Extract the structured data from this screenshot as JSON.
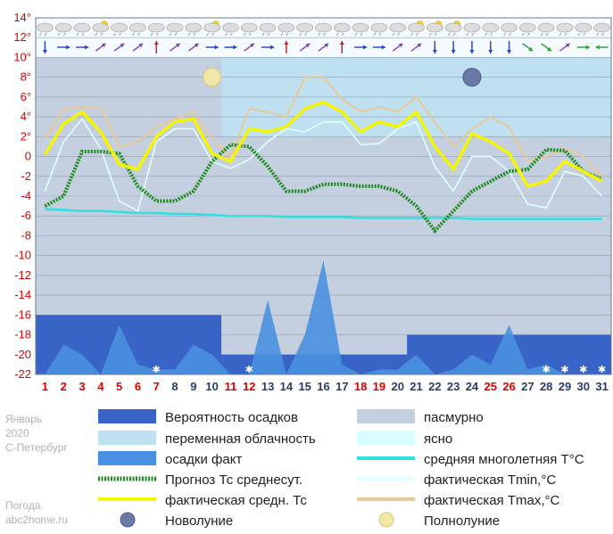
{
  "chart_data": {
    "type": "line",
    "month": "Январь",
    "year": "2020",
    "city": "С-Петербург",
    "site_line1": "Погода",
    "site_line2": "abc2home.ru",
    "ylim": [
      -22,
      14
    ],
    "yticks": [
      "14°",
      "12°",
      "10°",
      "8°",
      "6°",
      "4°",
      "2°",
      "0",
      "-2",
      "-4",
      "-6",
      "-8",
      "-10",
      "-12",
      "-14",
      "-16",
      "-18",
      "-20",
      "-22"
    ],
    "x": [
      1,
      2,
      3,
      4,
      5,
      6,
      7,
      8,
      9,
      10,
      11,
      12,
      13,
      14,
      15,
      16,
      17,
      18,
      19,
      20,
      21,
      22,
      23,
      24,
      25,
      26,
      27,
      28,
      29,
      30,
      31
    ],
    "x_labels": [
      "1",
      "2",
      "3",
      "4",
      "5",
      "6",
      "7",
      "8",
      "9",
      "10",
      "11",
      "12",
      "13",
      "14",
      "15",
      "16",
      "17",
      "18",
      "19",
      "20",
      "21",
      "22",
      "23",
      "24",
      "25",
      "26",
      "27",
      "28",
      "29",
      "30",
      "31"
    ],
    "weekend_days": [
      1,
      2,
      3,
      4,
      5,
      6,
      7,
      11,
      12,
      18,
      19,
      25,
      26
    ],
    "colors": {
      "overcast": "#c4d0e0",
      "variable": "#bfe0f0",
      "clear": "#d8ffff",
      "precip_prob": "#3864c8",
      "precip_fact": "#4a90e0",
      "forecast_avg": "#1a8a1a",
      "actual_avg": "#f5f500",
      "tmin": "#e0ffff",
      "tmax": "#e8c898",
      "climate": "#30e0e0",
      "weekend": "#e00000",
      "weekday": "#2a3a6a"
    },
    "series": [
      {
        "name": "Прогноз Тс среднесут.",
        "values": [
          -5,
          -4,
          0.5,
          0.5,
          0.3,
          -3,
          -4.5,
          -4.5,
          -3.5,
          -0.5,
          1.2,
          1.0,
          -1,
          -3.5,
          -3.5,
          -2.8,
          -2.8,
          -3,
          -3,
          -3.5,
          -5,
          -7.5,
          -5.5,
          -3.5,
          -2.5,
          -1.5,
          -1.3,
          0.7,
          0.6,
          -1.5,
          -2.3
        ]
      },
      {
        "name": "фактическая средн. Тс",
        "values": [
          0.2,
          3.3,
          4.5,
          2.5,
          -0.8,
          -1.3,
          2.0,
          3.5,
          3.8,
          0.3,
          -0.5,
          2.8,
          2.5,
          3.0,
          4.8,
          5.5,
          4.5,
          2.5,
          3.5,
          3.0,
          4.5,
          1.0,
          -1.3,
          2.3,
          1.5,
          0.3,
          -3.0,
          -2.5,
          -0.5,
          -1.5,
          -2.5
        ]
      },
      {
        "name": "фактическая Tmin,°C",
        "values": [
          -3.5,
          1.5,
          3.8,
          0.8,
          -4.5,
          -5.5,
          1.5,
          2.8,
          2.8,
          -0.5,
          -1.2,
          -0.3,
          1.5,
          2.8,
          2.5,
          3.5,
          3.5,
          1.2,
          1.3,
          2.8,
          3.5,
          -1,
          -3.5,
          0,
          0,
          -1.5,
          -4.8,
          -5.2,
          -1.5,
          -2,
          -4
        ]
      },
      {
        "name": "фактическая Tmax,°C",
        "values": [
          1.8,
          4.8,
          5,
          5,
          1,
          1.5,
          3,
          3.8,
          4.5,
          1.8,
          0,
          4.8,
          4.5,
          4,
          8,
          8,
          5.8,
          4.5,
          5,
          4.5,
          6,
          3.5,
          1,
          2.8,
          4,
          3,
          -0.5,
          0,
          0.8,
          0,
          -2
        ]
      },
      {
        "name": "средняя многолетняя T°C",
        "values": [
          -5.3,
          -5.4,
          -5.5,
          -5.5,
          -5.6,
          -5.7,
          -5.7,
          -5.8,
          -5.8,
          -5.9,
          -6,
          -6,
          -6,
          -6.1,
          -6.1,
          -6.1,
          -6.1,
          -6.2,
          -6.2,
          -6.2,
          -6.2,
          -6.2,
          -6.2,
          -6.3,
          -6.3,
          -6.3,
          -6.3,
          -6.3,
          -6.3,
          -6.3,
          -6.3
        ]
      },
      {
        "name": "осадки факт",
        "values": [
          0,
          3,
          2,
          0,
          5,
          1,
          0.5,
          0.5,
          3,
          2,
          0,
          0,
          7.5,
          0,
          4,
          11.5,
          1,
          0,
          0.5,
          0.5,
          2,
          0,
          0.5,
          2,
          1,
          5,
          0.5,
          1,
          0,
          0,
          0
        ]
      }
    ],
    "precip_probability": [
      {
        "from": 1,
        "to": 10,
        "value": 6
      },
      {
        "from": 11,
        "to": 20,
        "value": 2
      },
      {
        "from": 21,
        "to": 31,
        "value": 4
      }
    ],
    "cloud_cover": [
      {
        "from": 1,
        "to": 10,
        "state": "overcast"
      },
      {
        "from": 11,
        "to": 20,
        "state": "variable"
      },
      {
        "from": 21,
        "to": 31,
        "state": "variable"
      }
    ],
    "moon_phases": [
      {
        "day": 10,
        "phase": "full",
        "y": 8
      },
      {
        "day": 24,
        "phase": "new",
        "y": 8
      }
    ],
    "snow_days": [
      7,
      12,
      28,
      29,
      30,
      31
    ],
    "wind_arrows": [
      {
        "day": 1,
        "dir": "down",
        "color": "#2040c0"
      },
      {
        "day": 2,
        "dir": "right",
        "color": "#2040c0"
      },
      {
        "day": 3,
        "dir": "right",
        "color": "#2040c0"
      },
      {
        "day": 4,
        "dir": "ne",
        "color": "#8040c0"
      },
      {
        "day": 5,
        "dir": "ne",
        "color": "#8040c0"
      },
      {
        "day": 6,
        "dir": "ne",
        "color": "#8040c0"
      },
      {
        "day": 7,
        "dir": "up",
        "color": "#c02020"
      },
      {
        "day": 8,
        "dir": "ne",
        "color": "#8040c0"
      },
      {
        "day": 9,
        "dir": "ne",
        "color": "#8040c0"
      },
      {
        "day": 10,
        "dir": "right",
        "color": "#2040c0"
      },
      {
        "day": 11,
        "dir": "right",
        "color": "#2040c0"
      },
      {
        "day": 12,
        "dir": "ne",
        "color": "#8040c0"
      },
      {
        "day": 13,
        "dir": "right",
        "color": "#2040c0"
      },
      {
        "day": 14,
        "dir": "up",
        "color": "#c02020"
      },
      {
        "day": 15,
        "dir": "ne",
        "color": "#8040c0"
      },
      {
        "day": 16,
        "dir": "ne",
        "color": "#8040c0"
      },
      {
        "day": 17,
        "dir": "up",
        "color": "#c02020"
      },
      {
        "day": 18,
        "dir": "right",
        "color": "#2040c0"
      },
      {
        "day": 19,
        "dir": "right",
        "color": "#2040c0"
      },
      {
        "day": 20,
        "dir": "ne",
        "color": "#8040c0"
      },
      {
        "day": 21,
        "dir": "ne",
        "color": "#8040c0"
      },
      {
        "day": 22,
        "dir": "down",
        "color": "#2040c0"
      },
      {
        "day": 23,
        "dir": "down",
        "color": "#2040c0"
      },
      {
        "day": 24,
        "dir": "down",
        "color": "#2040c0"
      },
      {
        "day": 25,
        "dir": "down",
        "color": "#2040c0"
      },
      {
        "day": 26,
        "dir": "down",
        "color": "#2040c0"
      },
      {
        "day": 27,
        "dir": "se",
        "color": "#20a020"
      },
      {
        "day": 28,
        "dir": "se",
        "color": "#20a020"
      },
      {
        "day": 29,
        "dir": "ne",
        "color": "#8040c0"
      },
      {
        "day": 30,
        "dir": "right",
        "color": "#20a020"
      },
      {
        "day": 31,
        "dir": "left",
        "color": "#20a020"
      }
    ],
    "sky_icons": [
      {
        "day": 1,
        "icon": "cloud"
      },
      {
        "day": 2,
        "icon": "cloud"
      },
      {
        "day": 3,
        "icon": "cloud"
      },
      {
        "day": 4,
        "icon": "sun-cloud"
      },
      {
        "day": 5,
        "icon": "cloud"
      },
      {
        "day": 6,
        "icon": "cloud"
      },
      {
        "day": 7,
        "icon": "cloud"
      },
      {
        "day": 8,
        "icon": "cloud"
      },
      {
        "day": 9,
        "icon": "cloud"
      },
      {
        "day": 10,
        "icon": "sun-cloud"
      },
      {
        "day": 11,
        "icon": "cloud"
      },
      {
        "day": 12,
        "icon": "cloud"
      },
      {
        "day": 13,
        "icon": "cloud"
      },
      {
        "day": 14,
        "icon": "cloud"
      },
      {
        "day": 15,
        "icon": "cloud"
      },
      {
        "day": 16,
        "icon": "cloud"
      },
      {
        "day": 17,
        "icon": "cloud"
      },
      {
        "day": 18,
        "icon": "cloud"
      },
      {
        "day": 19,
        "icon": "cloud"
      },
      {
        "day": 20,
        "icon": "cloud"
      },
      {
        "day": 21,
        "icon": "sun-cloud"
      },
      {
        "day": 22,
        "icon": "sun-cloud"
      },
      {
        "day": 23,
        "icon": "sun-cloud"
      },
      {
        "day": 24,
        "icon": "cloud"
      },
      {
        "day": 25,
        "icon": "cloud"
      },
      {
        "day": 26,
        "icon": "cloud"
      },
      {
        "day": 27,
        "icon": "cloud"
      },
      {
        "day": 28,
        "icon": "cloud"
      },
      {
        "day": 29,
        "icon": "cloud"
      },
      {
        "day": 30,
        "icon": "cloud"
      },
      {
        "day": 31,
        "icon": "cloud"
      }
    ],
    "legend": {
      "precip_prob": "Вероятность осадков",
      "variable": "переменная облачность",
      "precip_fact": "осадки факт",
      "forecast_avg": "Прогноз Тс среднесут.",
      "actual_avg": "фактическая средн. Тс",
      "new_moon": "Новолуние",
      "overcast": "пасмурно",
      "clear": "ясно",
      "climate": "средняя многолетняя T°C",
      "tmin": "фактическая Tmin,°C",
      "tmax": "фактическая Tmax,°C",
      "full_moon": "Полнолуние"
    }
  }
}
